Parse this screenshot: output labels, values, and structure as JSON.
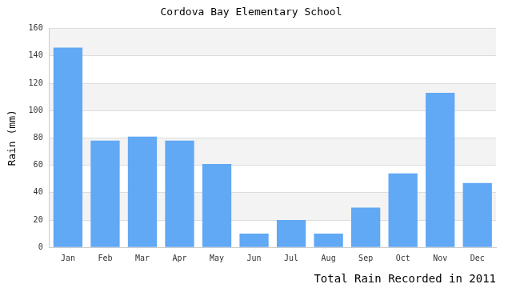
{
  "chart_data": {
    "type": "bar",
    "title": "Cordova Bay Elementary School",
    "x_label": "Total Rain Recorded in 2011",
    "y_label": "Rain (mm)",
    "categories": [
      "Jan",
      "Feb",
      "Mar",
      "Apr",
      "May",
      "Jun",
      "Jul",
      "Aug",
      "Sep",
      "Oct",
      "Nov",
      "Dec"
    ],
    "values": [
      146,
      78,
      81,
      78,
      61,
      10,
      20,
      10,
      29,
      54,
      113,
      47
    ],
    "color": "#61a8f5",
    "ylim": [
      0,
      160
    ],
    "yticks": [
      0,
      20,
      40,
      60,
      80,
      100,
      120,
      140,
      160
    ],
    "grid": true
  }
}
